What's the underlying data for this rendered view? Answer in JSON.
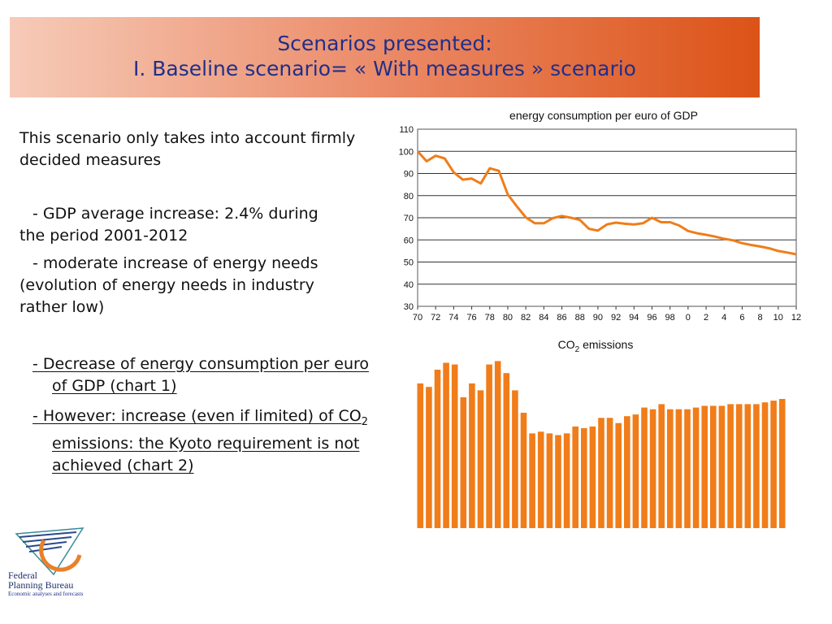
{
  "banner": {
    "line1": "Scenarios presented:",
    "line2": "I. Baseline scenario= « With measures » scenario"
  },
  "left_text": {
    "intro": "This scenario only takes into account firmly decided measures",
    "bullet1": "- GDP average increase: 2.4% during the period 2001-2012",
    "bullet2": "- moderate increase of energy needs (evolution of energy needs in industry rather low)",
    "bullet3": "- Decrease of energy consumption per euro of GDP (chart 1)",
    "bullet4_a": "- However: increase (even if limited) of CO",
    "bullet4_sub": "2",
    "bullet4_b": " emissions: the Kyoto requirement is not achieved (chart 2)"
  },
  "logo": {
    "line1": "Federal",
    "line2": "Planning Bureau",
    "tagline": "Economic analyses and forecasts",
    "colors": {
      "orange": "#e8812a",
      "blue": "#2a4a8a",
      "teal": "#3a8a9a"
    }
  },
  "chart_data": [
    {
      "type": "line",
      "title": "energy consumption per euro of GDP",
      "x_tick_labels": [
        "70",
        "72",
        "74",
        "76",
        "78",
        "80",
        "82",
        "84",
        "86",
        "88",
        "90",
        "92",
        "94",
        "96",
        "98",
        "0",
        "2",
        "4",
        "6",
        "8",
        "10",
        "12"
      ],
      "y_ticks": [
        30,
        40,
        50,
        60,
        70,
        80,
        90,
        100,
        110
      ],
      "ylim": [
        30,
        110
      ],
      "x": [
        1970,
        1971,
        1972,
        1973,
        1974,
        1975,
        1976,
        1977,
        1978,
        1979,
        1980,
        1981,
        1982,
        1983,
        1984,
        1985,
        1986,
        1987,
        1988,
        1989,
        1990,
        1991,
        1992,
        1993,
        1994,
        1995,
        1996,
        1997,
        1998,
        1999,
        2000,
        2001,
        2002,
        2003,
        2004,
        2005,
        2006,
        2007,
        2008,
        2009,
        2010,
        2011,
        2012
      ],
      "values": [
        100,
        95.5,
        98,
        96.8,
        90.5,
        87.2,
        87.7,
        85.5,
        92.3,
        91.2,
        80.5,
        75.2,
        70.2,
        67.5,
        67.5,
        69.8,
        70.8,
        70,
        69,
        65,
        64.2,
        67,
        67.8,
        67.3,
        67,
        67.5,
        70,
        68,
        68,
        66.5,
        64,
        63,
        62.3,
        61.5,
        60.5,
        59.8,
        58.5,
        57.7,
        57,
        56.2,
        55,
        54.3,
        53.5
      ],
      "grid": true,
      "color": "#f07d1a"
    },
    {
      "type": "bar",
      "title": "CO",
      "title_sub": "2",
      "title_suffix": " emissions",
      "x": [
        1970,
        1971,
        1972,
        1973,
        1974,
        1975,
        1976,
        1977,
        1978,
        1979,
        1980,
        1981,
        1982,
        1983,
        1984,
        1985,
        1986,
        1987,
        1988,
        1989,
        1990,
        1991,
        1992,
        1993,
        1994,
        1995,
        1996,
        1997,
        1998,
        1999,
        2000,
        2001,
        2002,
        2003,
        2004,
        2005,
        2006,
        2007,
        2008,
        2009,
        2010,
        2011,
        2012
      ],
      "values": [
        144,
        142,
        152,
        156,
        155,
        136,
        144,
        140,
        155,
        157,
        150,
        140,
        127,
        115,
        116,
        115,
        114,
        115,
        119,
        118,
        119,
        124,
        124,
        121,
        125,
        126,
        130,
        129,
        132,
        129,
        129,
        129,
        130,
        131,
        131,
        131,
        132,
        132,
        132,
        132,
        133,
        134,
        135
      ],
      "ylim": [
        60,
        160
      ],
      "grid": false,
      "color": "#f07d1a"
    }
  ]
}
